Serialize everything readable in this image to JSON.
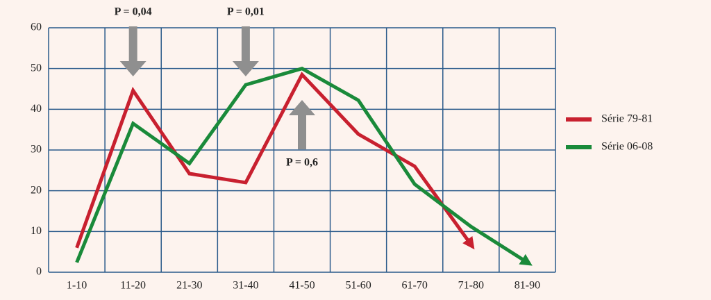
{
  "chart_data": {
    "type": "line",
    "categories": [
      "1-10",
      "11-20",
      "21-30",
      "31-40",
      "41-50",
      "51-60",
      "61-70",
      "71-80",
      "81-90"
    ],
    "series": [
      {
        "name": "Série 79-81",
        "color": "#c8202f",
        "values": [
          6,
          44.6,
          24.2,
          22,
          48.5,
          33.9,
          26,
          6.8,
          null
        ]
      },
      {
        "name": "Série 06-08",
        "color": "#1a8a3a",
        "values": [
          2.4,
          36.5,
          26.7,
          46,
          50,
          42.2,
          21.6,
          11.2,
          2.4
        ]
      }
    ],
    "ylim": [
      0,
      60
    ],
    "yticks": [
      0,
      10,
      20,
      30,
      40,
      50,
      60
    ],
    "grid": true,
    "legend": "right",
    "annotations": [
      {
        "text": "P = 0,04",
        "category": "11-20",
        "direction": "down"
      },
      {
        "text": "P = 0,01",
        "category": "31-40",
        "direction": "down"
      },
      {
        "text": "P = 0,6",
        "category": "41-50",
        "direction": "up"
      }
    ]
  }
}
